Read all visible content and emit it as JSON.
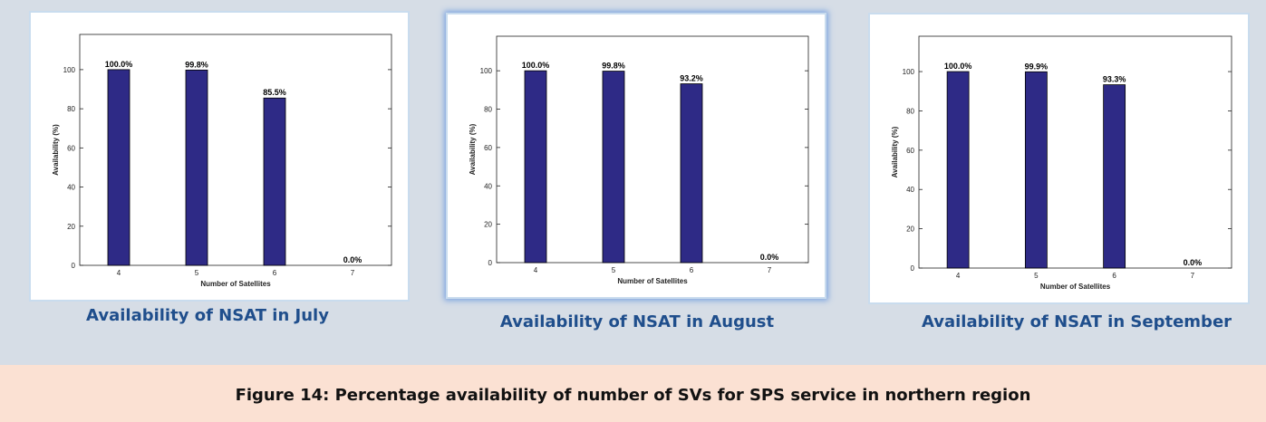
{
  "chart_data": [
    {
      "type": "bar",
      "title": "Availability of NSAT in July",
      "xlabel": "Number of Satellites",
      "ylabel": "Availability (%)",
      "categories": [
        "4",
        "5",
        "6",
        "7"
      ],
      "values": [
        100.0,
        99.8,
        85.5,
        0.0
      ],
      "value_labels": [
        "100.0%",
        "99.8%",
        "85.5%",
        "0.0%"
      ],
      "color": "#2e2a86",
      "ylim": [
        0,
        118
      ],
      "yticks": [
        0,
        20,
        40,
        60,
        80,
        100
      ]
    },
    {
      "type": "bar",
      "title": "Availability of NSAT in August",
      "xlabel": "Number of Satellites",
      "ylabel": "Availability (%)",
      "categories": [
        "4",
        "5",
        "6",
        "7"
      ],
      "values": [
        100.0,
        99.8,
        93.2,
        0.0
      ],
      "value_labels": [
        "100.0%",
        "99.8%",
        "93.2%",
        "0.0%"
      ],
      "color": "#2e2a86",
      "ylim": [
        0,
        118
      ],
      "yticks": [
        0,
        20,
        40,
        60,
        80,
        100
      ]
    },
    {
      "type": "bar",
      "title": "Availability of NSAT in September",
      "xlabel": "Number of Satellites",
      "ylabel": "Availability (%)",
      "categories": [
        "4",
        "5",
        "6",
        "7"
      ],
      "values": [
        100.0,
        99.9,
        93.3,
        0.0
      ],
      "value_labels": [
        "100.0%",
        "99.9%",
        "93.3%",
        "0.0%"
      ],
      "color": "#2e2a86",
      "ylim": [
        0,
        118
      ],
      "yticks": [
        0,
        20,
        40,
        60,
        80,
        100
      ]
    }
  ],
  "caption": "Figure 14: Percentage availability of number of SVs for SPS service in northern region"
}
